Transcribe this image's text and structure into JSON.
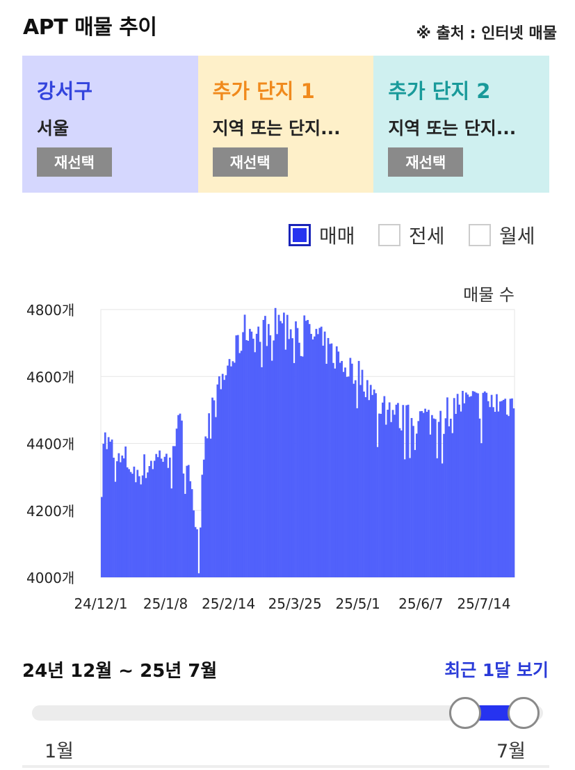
{
  "header": {
    "title": "APT 매물 추이",
    "source": "※ 출처 : 인터넷 매물"
  },
  "panels": [
    {
      "name": "강서구",
      "sub": "서울",
      "button": "재선택",
      "bg": "#d5d7fe",
      "color": "#3344dd"
    },
    {
      "name": "추가 단지 1",
      "sub": "지역 또는 단지...",
      "button": "재선택",
      "bg": "#fef0c9",
      "color": "#f08a1d"
    },
    {
      "name": "추가 단지 2",
      "sub": "지역 또는 단지...",
      "button": "재선택",
      "bg": "#cff0f0",
      "color": "#199a9a"
    }
  ],
  "legend": [
    {
      "label": "매매",
      "checked": true
    },
    {
      "label": "전세",
      "checked": false
    },
    {
      "label": "월세",
      "checked": false
    }
  ],
  "chart_data": {
    "type": "bar",
    "ylabel": "매물 수",
    "ylim": [
      4000,
      4800
    ],
    "yticks": [
      {
        "value": 4000,
        "label": "4000개"
      },
      {
        "value": 4200,
        "label": "4200개"
      },
      {
        "value": 4400,
        "label": "4400개"
      },
      {
        "value": 4600,
        "label": "4600개"
      },
      {
        "value": 4800,
        "label": "4800개"
      }
    ],
    "xticks": [
      "24/12/1",
      "25/1/8",
      "25/2/14",
      "25/3/25",
      "25/5/1",
      "25/6/7",
      "25/7/14"
    ],
    "grid": true,
    "bar_color": "#5161fb",
    "start_date": "2024-12-01",
    "end_date": "2025-07-31",
    "keypoints": [
      [
        0,
        4290
      ],
      [
        1,
        4420
      ],
      [
        3,
        4400
      ],
      [
        6,
        4380
      ],
      [
        10,
        4340
      ],
      [
        14,
        4350
      ],
      [
        18,
        4330
      ],
      [
        22,
        4310
      ],
      [
        26,
        4330
      ],
      [
        30,
        4350
      ],
      [
        34,
        4360
      ],
      [
        38,
        4380
      ],
      [
        42,
        4420
      ],
      [
        46,
        4450
      ],
      [
        50,
        4360
      ],
      [
        53,
        4290
      ],
      [
        55,
        4200
      ],
      [
        57,
        4060
      ],
      [
        59,
        4300
      ],
      [
        61,
        4450
      ],
      [
        64,
        4480
      ],
      [
        68,
        4540
      ],
      [
        72,
        4600
      ],
      [
        75,
        4640
      ],
      [
        78,
        4660
      ],
      [
        81,
        4700
      ],
      [
        84,
        4740
      ],
      [
        87,
        4740
      ],
      [
        90,
        4720
      ],
      [
        93,
        4730
      ],
      [
        96,
        4740
      ],
      [
        99,
        4750
      ],
      [
        102,
        4760
      ],
      [
        105,
        4770
      ],
      [
        108,
        4760
      ],
      [
        111,
        4740
      ],
      [
        114,
        4750
      ],
      [
        117,
        4740
      ],
      [
        120,
        4740
      ],
      [
        123,
        4720
      ],
      [
        126,
        4720
      ],
      [
        129,
        4700
      ],
      [
        132,
        4680
      ],
      [
        135,
        4670
      ],
      [
        138,
        4660
      ],
      [
        141,
        4640
      ],
      [
        144,
        4630
      ],
      [
        147,
        4620
      ],
      [
        150,
        4610
      ],
      [
        153,
        4600
      ],
      [
        156,
        4580
      ],
      [
        159,
        4540
      ],
      [
        162,
        4520
      ],
      [
        165,
        4510
      ],
      [
        168,
        4510
      ],
      [
        171,
        4500
      ],
      [
        174,
        4480
      ],
      [
        177,
        4470
      ],
      [
        180,
        4470
      ],
      [
        183,
        4470
      ],
      [
        186,
        4470
      ],
      [
        189,
        4480
      ],
      [
        192,
        4470
      ],
      [
        195,
        4470
      ],
      [
        198,
        4480
      ],
      [
        201,
        4490
      ],
      [
        204,
        4500
      ],
      [
        207,
        4510
      ],
      [
        210,
        4520
      ],
      [
        212,
        4520
      ]
    ]
  },
  "range": {
    "label": "24년 12월 ~ 25년 7월",
    "recent_button": "최근 1달 보기",
    "min_label": "1월",
    "max_label": "7월",
    "start_value": 6,
    "end_value": 7,
    "min_value": 1,
    "max_value": 7
  }
}
